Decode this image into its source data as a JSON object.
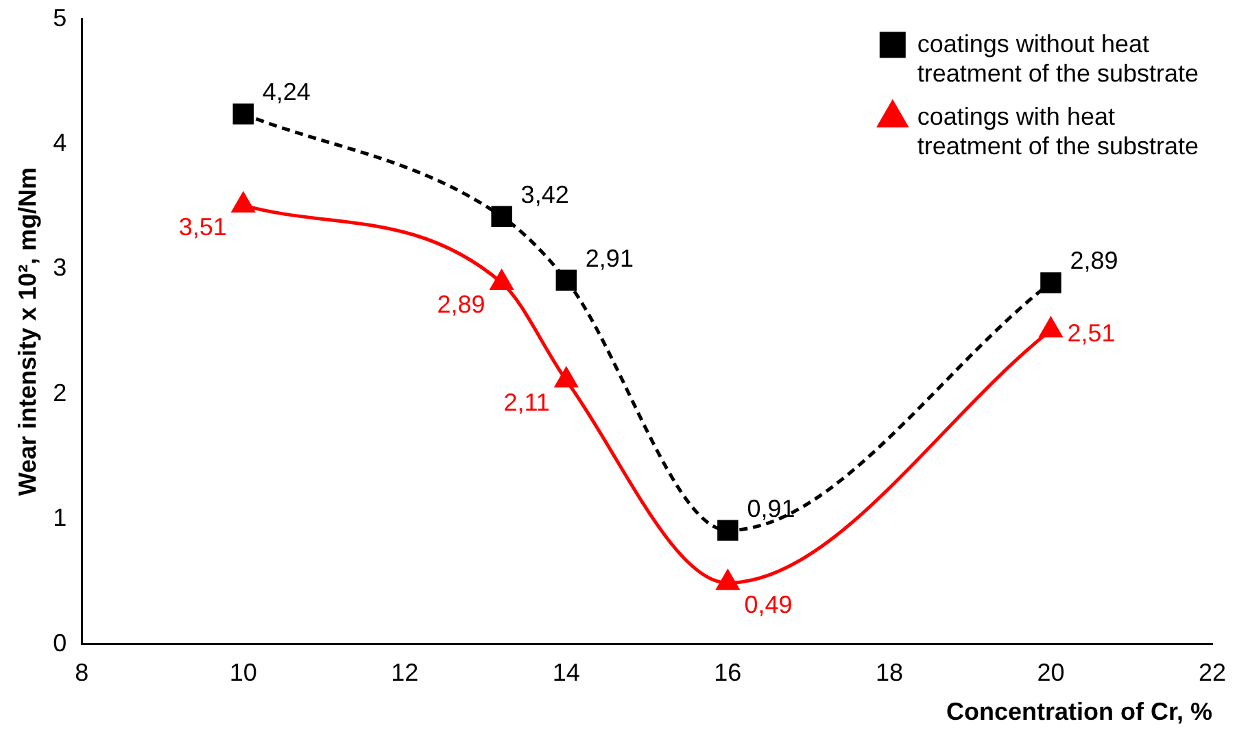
{
  "chart_data": {
    "type": "line",
    "xlabel": "Concentration of Cr, %",
    "ylabel": "Wear intensity x 10², mg/Nm",
    "x": [
      10,
      13.2,
      14,
      16,
      20
    ],
    "xlim": [
      8,
      22
    ],
    "xticks": [
      8,
      10,
      12,
      14,
      16,
      18,
      20,
      22
    ],
    "ylim": [
      0,
      5
    ],
    "yticks": [
      0,
      1,
      2,
      3,
      4,
      5
    ],
    "grid": false,
    "legend": "top right",
    "series": [
      {
        "name": "coatings without heat treatment of the substrate",
        "color": "#000000",
        "marker": "square",
        "line_style": "dashed",
        "values": [
          4.24,
          3.42,
          2.91,
          0.91,
          2.89
        ],
        "value_labels": [
          "4,24",
          "3,42",
          "2,91",
          "0,91",
          "2,89"
        ]
      },
      {
        "name": "coatings with heat treatment of the substrate",
        "color": "#ff0000",
        "marker": "triangle",
        "line_style": "solid",
        "values": [
          3.51,
          2.89,
          2.11,
          0.49,
          2.51
        ],
        "value_labels": [
          "3,51",
          "2,89",
          "2,11",
          "0,49",
          "2,51"
        ]
      }
    ]
  }
}
